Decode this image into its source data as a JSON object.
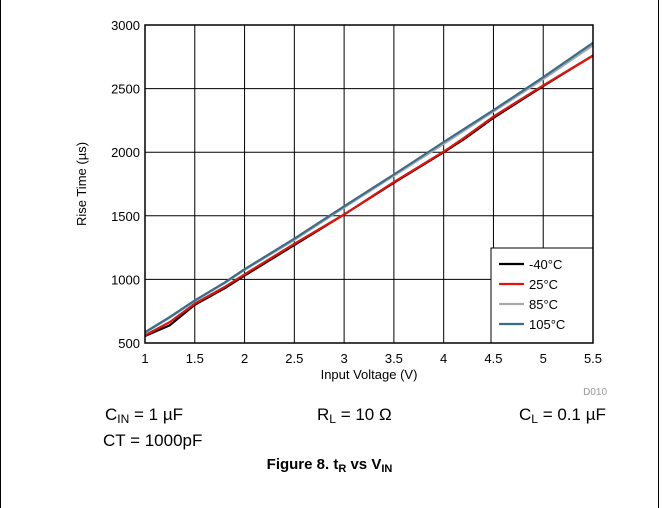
{
  "chart_data": {
    "type": "line",
    "title": "",
    "xlabel": "Input Voltage (V)",
    "ylabel": "Rise Time (µs)",
    "xlim": [
      1,
      5.5
    ],
    "ylim": [
      500,
      3000
    ],
    "x_ticks": [
      "1",
      "1.5",
      "2",
      "2.5",
      "3",
      "3.5",
      "4",
      "4.5",
      "5",
      "5.5"
    ],
    "y_ticks": [
      "500",
      "1000",
      "1500",
      "2000",
      "2500",
      "3000"
    ],
    "grid": true,
    "legend_position": "bottom-right",
    "watermark": "D010",
    "series": [
      {
        "name": "-40°C",
        "color": "#000000",
        "x": [
          1.0,
          1.25,
          1.5,
          1.8,
          2.0,
          2.5,
          3.0,
          3.5,
          4.0,
          4.2,
          4.5,
          5.0,
          5.5
        ],
        "y": [
          555,
          640,
          800,
          930,
          1030,
          1270,
          1510,
          1760,
          2000,
          2100,
          2270,
          2520,
          2760
        ]
      },
      {
        "name": "25°C",
        "color": "#e3120b",
        "x": [
          1.0,
          1.25,
          1.5,
          1.8,
          2.0,
          2.5,
          3.0,
          3.5,
          4.0,
          4.2,
          4.5,
          5.0,
          5.5
        ],
        "y": [
          560,
          665,
          810,
          940,
          1040,
          1280,
          1510,
          1765,
          2005,
          2110,
          2280,
          2525,
          2760
        ]
      },
      {
        "name": "85°C",
        "color": "#a8a8a8",
        "x": [
          1.0,
          1.25,
          1.5,
          1.8,
          2.0,
          2.5,
          3.0,
          3.5,
          4.0,
          4.5,
          5.0,
          5.5
        ],
        "y": [
          580,
          700,
          830,
          970,
          1075,
          1310,
          1565,
          1815,
          2065,
          2320,
          2575,
          2840
        ]
      },
      {
        "name": "105°C",
        "color": "#3a6d8c",
        "x": [
          1.0,
          1.25,
          1.5,
          1.8,
          2.0,
          2.5,
          3.0,
          3.5,
          4.0,
          4.5,
          5.0,
          5.5
        ],
        "y": [
          585,
          705,
          835,
          975,
          1080,
          1320,
          1575,
          1825,
          2080,
          2330,
          2590,
          2860
        ]
      }
    ]
  },
  "conditions": {
    "cin": {
      "base": "C",
      "sub": "IN",
      "value": " = 1 µF"
    },
    "rl": {
      "base": "R",
      "sub": "L",
      "value": " = 10 Ω"
    },
    "cl": {
      "base": "C",
      "sub": "L",
      "value": " = 0.1 µF"
    },
    "ct": "CT = 1000pF"
  },
  "caption": {
    "prefix": "Figure 8. t",
    "sub1": "R",
    "middle": " vs V",
    "sub2": "IN"
  }
}
